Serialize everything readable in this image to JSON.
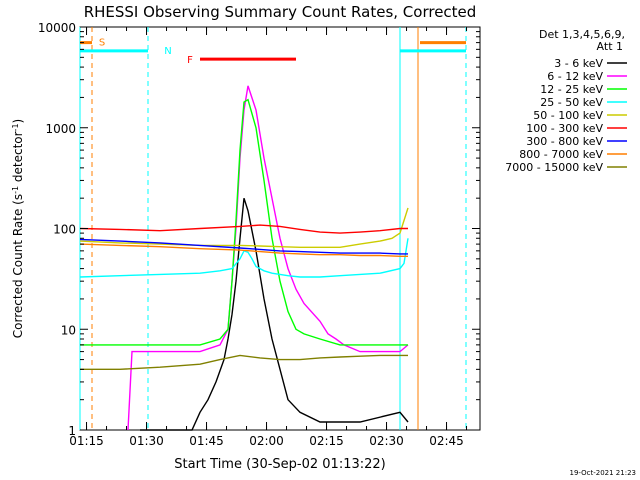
{
  "chart_data": {
    "type": "line",
    "title": "RHESSI Observing Summary Count Rates, Corrected",
    "xlabel": "Start Time (30-Sep-02 01:13:22)",
    "ylabel_parts": [
      "Corrected Count Rate (s",
      "-1",
      " detector",
      "-1",
      ")"
    ],
    "yscale": "log",
    "ylim": [
      1,
      10000
    ],
    "xlim_minutes": [
      0,
      100
    ],
    "x_ticks": [
      {
        "minutes": 1.633,
        "label": "01:15"
      },
      {
        "minutes": 16.633,
        "label": "01:30"
      },
      {
        "minutes": 31.633,
        "label": "01:45"
      },
      {
        "minutes": 46.633,
        "label": "02:00"
      },
      {
        "minutes": 61.633,
        "label": "02:15"
      },
      {
        "minutes": 76.633,
        "label": "02:30"
      },
      {
        "minutes": 91.633,
        "label": "02:45"
      }
    ],
    "y_ticks": [
      {
        "value": 1,
        "label": "1"
      },
      {
        "value": 10,
        "label": "10"
      },
      {
        "value": 100,
        "label": "100"
      },
      {
        "value": 1000,
        "label": "1000"
      },
      {
        "value": 10000,
        "label": "10000"
      }
    ],
    "legend": {
      "header": [
        "Det 1,3,4,5,6,9,",
        "Att 1"
      ],
      "position": "right"
    },
    "series": [
      {
        "name": "3 - 6 keV",
        "color": "#000000",
        "x": [
          15,
          28,
          30,
          32,
          34,
          36,
          37,
          38,
          39,
          40,
          41,
          42,
          44,
          46,
          48,
          50,
          52,
          55,
          60,
          70,
          80,
          82
        ],
        "y": [
          1,
          1,
          1.5,
          2,
          3,
          5,
          8,
          14,
          30,
          80,
          200,
          150,
          60,
          20,
          8,
          4,
          2,
          1.5,
          1.2,
          1.2,
          1.5,
          1.2
        ]
      },
      {
        "name": "6 - 12 keV",
        "color": "#ff00ff",
        "x": [
          12,
          13,
          20,
          30,
          35,
          37,
          38,
          39,
          40,
          41,
          42,
          44,
          46,
          48,
          50,
          52,
          54,
          56,
          60,
          62,
          64,
          66,
          70,
          75,
          80,
          82
        ],
        "y": [
          1,
          6,
          6,
          6,
          7,
          10,
          30,
          100,
          500,
          1500,
          2600,
          1500,
          500,
          200,
          80,
          40,
          25,
          18,
          12,
          9,
          8,
          7,
          6,
          6,
          6,
          7
        ]
      },
      {
        "name": "12 - 25 keV",
        "color": "#00ff00",
        "x": [
          0,
          10,
          20,
          30,
          35,
          37,
          38,
          39,
          40,
          41,
          42,
          44,
          46,
          48,
          50,
          52,
          54,
          56,
          60,
          65,
          70,
          80,
          82
        ],
        "y": [
          7,
          7,
          7,
          7,
          8,
          10,
          30,
          120,
          600,
          1800,
          1900,
          1000,
          300,
          80,
          30,
          15,
          10,
          9,
          8,
          7,
          7,
          7,
          7
        ]
      },
      {
        "name": "25 - 50 keV",
        "color": "#00ffff",
        "x": [
          0,
          10,
          20,
          30,
          35,
          38,
          40,
          41,
          42,
          43,
          44,
          46,
          48,
          50,
          52,
          55,
          60,
          65,
          70,
          75,
          80,
          81,
          82
        ],
        "y": [
          33,
          34,
          35,
          36,
          38,
          40,
          50,
          60,
          58,
          50,
          42,
          38,
          36,
          35,
          34,
          33,
          33,
          34,
          35,
          36,
          40,
          45,
          80
        ]
      },
      {
        "name": "50 - 100 keV",
        "color": "#cccc00",
        "x": [
          0,
          10,
          20,
          30,
          40,
          45,
          50,
          55,
          60,
          65,
          70,
          75,
          78,
          80,
          81,
          82
        ],
        "y": [
          75,
          72,
          70,
          68,
          68,
          67,
          66,
          65,
          65,
          65,
          70,
          75,
          80,
          90,
          120,
          160
        ]
      },
      {
        "name": "100 - 300 keV",
        "color": "#ff0000",
        "x": [
          0,
          10,
          20,
          30,
          40,
          45,
          50,
          55,
          60,
          65,
          70,
          75,
          80,
          82
        ],
        "y": [
          100,
          98,
          95,
          100,
          105,
          108,
          105,
          98,
          92,
          90,
          92,
          95,
          100,
          100
        ]
      },
      {
        "name": "300 - 800 keV",
        "color": "#0000ff",
        "x": [
          0,
          10,
          20,
          30,
          40,
          45,
          50,
          55,
          60,
          65,
          70,
          75,
          80,
          82
        ],
        "y": [
          78,
          75,
          72,
          68,
          64,
          62,
          60,
          59,
          58,
          57,
          57,
          57,
          56,
          56
        ]
      },
      {
        "name": "800 - 7000 keV",
        "color": "#ff7f00",
        "x": [
          0,
          10,
          20,
          30,
          40,
          45,
          50,
          55,
          60,
          65,
          70,
          75,
          80,
          82
        ],
        "y": [
          70,
          68,
          66,
          63,
          61,
          59,
          57,
          56,
          55,
          55,
          54,
          54,
          53,
          53
        ]
      },
      {
        "name": "7000 - 15000 keV",
        "color": "#808000",
        "x": [
          0,
          10,
          20,
          30,
          35,
          40,
          45,
          50,
          55,
          60,
          65,
          70,
          75,
          80,
          82
        ],
        "y": [
          4,
          4,
          4.2,
          4.5,
          5,
          5.5,
          5.2,
          5,
          5,
          5.2,
          5.3,
          5.4,
          5.5,
          5.5,
          5.5
        ]
      }
    ],
    "annotations": [
      {
        "label": "S",
        "color": "#ff7f00"
      },
      {
        "label": "N",
        "color": "#00ffff"
      },
      {
        "label": "F",
        "color": "#ff0000"
      }
    ],
    "state_bars": [
      {
        "color": "#ff7f00",
        "y": 7000,
        "x_start": 0,
        "x_end": 3
      },
      {
        "color": "#ff7f00",
        "y": 7000,
        "x_start": 85,
        "x_end": 96.5
      },
      {
        "color": "#00ffff",
        "y": 5800,
        "x_start": 0,
        "x_end": 17
      },
      {
        "color": "#00ffff",
        "y": 5800,
        "x_start": 80,
        "x_end": 96.5
      },
      {
        "color": "#ff0000",
        "y": 4800,
        "x_start": 30,
        "x_end": 54
      }
    ],
    "vertical_markers": [
      {
        "color": "#00ffff",
        "style": "solid",
        "x": 0
      },
      {
        "color": "#ff7f00",
        "style": "dashed",
        "x": 3
      },
      {
        "color": "#00ffff",
        "style": "dashed",
        "x": 17
      },
      {
        "color": "#00ffff",
        "style": "solid",
        "x": 80
      },
      {
        "color": "#ff7f00",
        "style": "solid",
        "x": 84.5
      },
      {
        "color": "#00ffff",
        "style": "dashed",
        "x": 96.5
      }
    ],
    "footer": "19-Oct-2021 21:23",
    "grid": false
  }
}
